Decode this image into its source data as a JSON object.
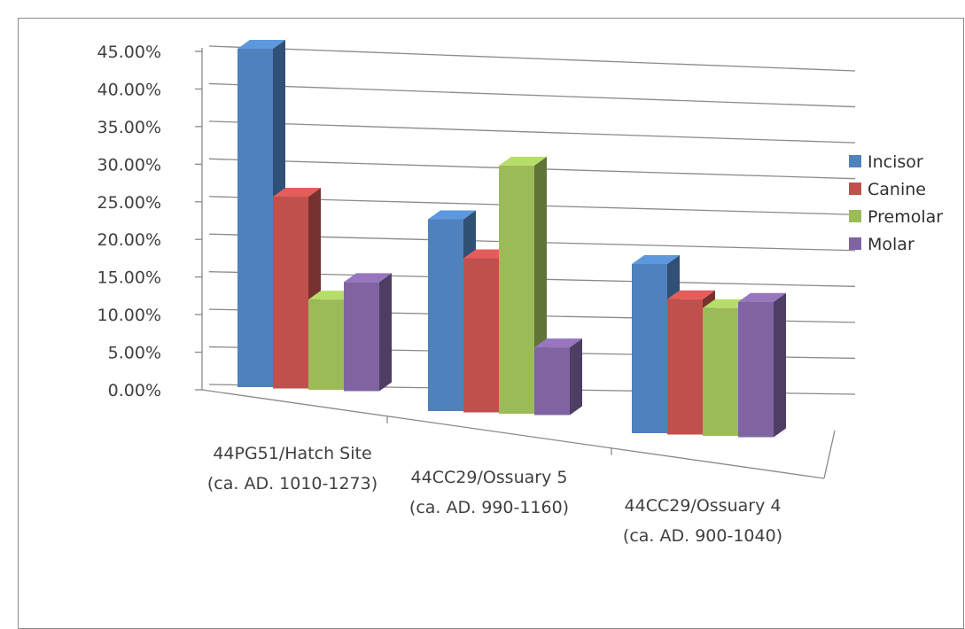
{
  "chart_data": {
    "type": "bar",
    "title": "",
    "xlabel": "",
    "ylabel": "",
    "categories": [
      {
        "line1": "44PG51/Hatch Site",
        "line2": "(ca. AD. 1010-1273)"
      },
      {
        "line1": "44CC29/Ossuary 5",
        "line2": "(ca. AD. 990-1160)"
      },
      {
        "line1": "44CC29/Ossuary 4",
        "line2": "(ca. AD. 900-1040)"
      }
    ],
    "series": [
      {
        "name": "Incisor",
        "values": [
          45.0,
          25.5,
          22.5
        ],
        "color": "#4f81bd"
      },
      {
        "name": "Canine",
        "values": [
          25.5,
          20.5,
          18.0
        ],
        "color": "#c0504d"
      },
      {
        "name": "Premolar",
        "values": [
          12.0,
          33.0,
          17.0
        ],
        "color": "#9bbb59"
      },
      {
        "name": "Molar",
        "values": [
          14.5,
          9.0,
          18.0
        ],
        "color": "#8064a2"
      }
    ],
    "ylim": [
      0,
      45
    ],
    "yticks": [
      "0.00%",
      "5.00%",
      "10.00%",
      "15.00%",
      "20.00%",
      "25.00%",
      "30.00%",
      "35.00%",
      "40.00%",
      "45.00%"
    ],
    "legend_position": "right",
    "grid": true,
    "three_d": true
  }
}
